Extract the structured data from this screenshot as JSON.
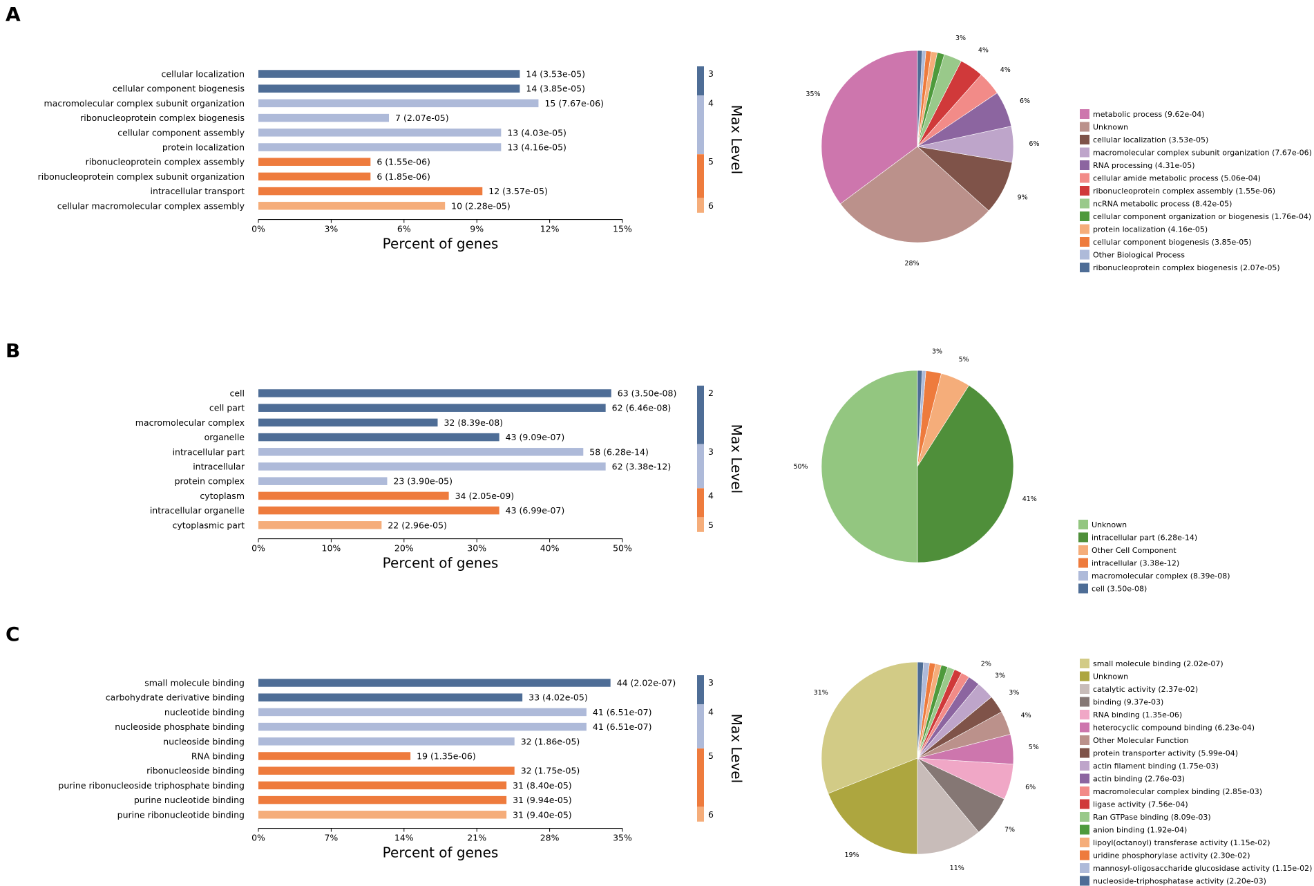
{
  "chart_data": [
    {
      "panel": "A",
      "type": "bar",
      "orientation": "horizontal",
      "xlabel": "Percent of genes",
      "x_ticks": [
        "0%",
        "3%",
        "6%",
        "9%",
        "12%",
        "15%"
      ],
      "xlim": [
        0,
        15
      ],
      "categories": [
        "cellular localization",
        "cellular component biogenesis",
        "macromolecular complex subunit organization",
        "ribonucleoprotein complex biogenesis",
        "cellular component assembly",
        "protein localization",
        "ribonucleoprotein complex assembly",
        "ribonucleoprotein complex subunit organization",
        "intracellular transport",
        "cellular macromolecular complex assembly"
      ],
      "percent_values": [
        10.77,
        10.77,
        11.54,
        5.38,
        10.0,
        10.0,
        4.62,
        4.62,
        9.23,
        7.69
      ],
      "value_labels": [
        "14 (3.53e-05)",
        "14 (3.85e-05)",
        "15 (7.67e-06)",
        "7 (2.07e-05)",
        "13 (4.03e-05)",
        "13 (4.16e-05)",
        "6 (1.55e-06)",
        "6 (1.85e-06)",
        "12 (3.57e-05)",
        "10 (2.28e-05)"
      ],
      "levels": [
        3,
        3,
        4,
        4,
        4,
        4,
        5,
        5,
        5,
        6
      ],
      "level_title": "Max Level",
      "level_colors": {
        "2": "#4e6d96",
        "3": "#4e6d96",
        "4": "#aebad9",
        "5": "#ee7b3d",
        "6": "#f5ad7a"
      },
      "pie": {
        "slices": [
          {
            "label": "metabolic process (9.62e-04)",
            "value": 35,
            "color": "#cd76ad",
            "pct_label": "35%"
          },
          {
            "label": "Unknown",
            "value": 28,
            "color": "#bb918b",
            "pct_label": "28%"
          },
          {
            "label": "cellular localization (3.53e-05)",
            "value": 9,
            "color": "#7f5349",
            "pct_label": "9%"
          },
          {
            "label": "macromolecular complex subunit organization (7.67e-06)",
            "value": 6,
            "color": "#bea5ca",
            "pct_label": "6%"
          },
          {
            "label": "RNA processing (4.31e-05)",
            "value": 6,
            "color": "#8c65a0",
            "pct_label": "6%"
          },
          {
            "label": "cellular amide metabolic process (5.06e-04)",
            "value": 4,
            "color": "#f28b88",
            "pct_label": "4%"
          },
          {
            "label": "ribonucleoprotein complex assembly (1.55e-06)",
            "value": 4,
            "color": "#d0393a",
            "pct_label": "4%"
          },
          {
            "label": "ncRNA metabolic process (8.42e-05)",
            "value": 3,
            "color": "#99c98a",
            "pct_label": "3%"
          },
          {
            "label": "cellular component organization or biogenesis (1.76e-04)",
            "value": 1.2,
            "color": "#4e9a3c",
            "pct_label": ""
          },
          {
            "label": "protein localization (4.16e-05)",
            "value": 1,
            "color": "#f5ad7a",
            "pct_label": ""
          },
          {
            "label": "cellular component biogenesis (3.85e-05)",
            "value": 0.9,
            "color": "#ee7b3d",
            "pct_label": ""
          },
          {
            "label": "Other Biological Process",
            "value": 0.6,
            "color": "#aebad9",
            "pct_label": ""
          },
          {
            "label": "ribonucleoprotein complex biogenesis (2.07e-05)",
            "value": 0.8,
            "color": "#4e6d96",
            "pct_label": ""
          }
        ]
      }
    },
    {
      "panel": "B",
      "type": "bar",
      "orientation": "horizontal",
      "xlabel": "Percent of genes",
      "x_ticks": [
        "0%",
        "10%",
        "20%",
        "30%",
        "40%",
        "50%"
      ],
      "xlim": [
        0,
        50
      ],
      "categories": [
        "cell",
        "cell part",
        "macromolecular complex",
        "organelle",
        "intracellular part",
        "intracellular",
        "protein complex",
        "cytoplasm",
        "intracellular organelle",
        "cytoplasmic part"
      ],
      "percent_values": [
        48.46,
        47.69,
        24.62,
        33.08,
        44.62,
        47.69,
        17.69,
        26.15,
        33.08,
        16.92
      ],
      "value_labels": [
        "63 (3.50e-08)",
        "62 (6.46e-08)",
        "32 (8.39e-08)",
        "43 (9.09e-07)",
        "58 (6.28e-14)",
        "62 (3.38e-12)",
        "23 (3.90e-05)",
        "34 (2.05e-09)",
        "43 (6.99e-07)",
        "22 (2.96e-05)"
      ],
      "levels": [
        2,
        2,
        2,
        2,
        3,
        3,
        3,
        4,
        4,
        5
      ],
      "level_title": "Max Level",
      "level_colors": {
        "2": "#4e6d96",
        "3": "#aebad9",
        "4": "#ee7b3d",
        "5": "#f5ad7a"
      },
      "pie": {
        "slices": [
          {
            "label": "Unknown",
            "value": 50,
            "color": "#93c680",
            "pct_label": "50%"
          },
          {
            "label": "intracellular part (6.28e-14)",
            "value": 41,
            "color": "#4f8f3a",
            "pct_label": "41%"
          },
          {
            "label": "Other Cell Component",
            "value": 5,
            "color": "#f5ad7a",
            "pct_label": "5%"
          },
          {
            "label": "intracellular (3.38e-12)",
            "value": 2.6,
            "color": "#ee7b3d",
            "pct_label": "3%"
          },
          {
            "label": "macromolecular complex (8.39e-08)",
            "value": 0.6,
            "color": "#aebad9",
            "pct_label": ""
          },
          {
            "label": "cell (3.50e-08)",
            "value": 0.8,
            "color": "#4e6d96",
            "pct_label": ""
          }
        ]
      }
    },
    {
      "panel": "C",
      "type": "bar",
      "orientation": "horizontal",
      "xlabel": "Percent of genes",
      "x_ticks": [
        "0%",
        "7%",
        "14%",
        "21%",
        "28%",
        "35%"
      ],
      "xlim": [
        0,
        35
      ],
      "categories": [
        "small molecule binding",
        "carbohydrate derivative binding",
        "nucleotide binding",
        "nucleoside phosphate binding",
        "nucleoside binding",
        "RNA binding",
        "ribonucleoside binding",
        "purine ribonucleoside triphosphate binding",
        "purine nucleotide binding",
        "purine ribonucleotide binding"
      ],
      "percent_values": [
        33.85,
        25.38,
        31.54,
        31.54,
        24.62,
        14.62,
        24.62,
        23.85,
        23.85,
        23.85
      ],
      "value_labels": [
        "44 (2.02e-07)",
        "33 (4.02e-05)",
        "41 (6.51e-07)",
        "41 (6.51e-07)",
        "32 (1.86e-05)",
        "19 (1.35e-06)",
        "32 (1.75e-05)",
        "31 (8.40e-05)",
        "31 (9.94e-05)",
        "31 (9.40e-05)"
      ],
      "levels": [
        3,
        3,
        4,
        4,
        4,
        5,
        5,
        5,
        5,
        6
      ],
      "level_title": "Max Level",
      "level_colors": {
        "3": "#4e6d96",
        "4": "#aebad9",
        "5": "#ee7b3d",
        "6": "#f5ad7a"
      },
      "pie": {
        "slices": [
          {
            "label": "small molecule binding (2.02e-07)",
            "value": 31,
            "color": "#d2cb86",
            "pct_label": "31%"
          },
          {
            "label": "Unknown",
            "value": 19,
            "color": "#ada63f",
            "pct_label": "19%"
          },
          {
            "label": "catalytic activity (2.37e-02)",
            "value": 11,
            "color": "#c8bcb9",
            "pct_label": "11%"
          },
          {
            "label": "binding (9.37e-03)",
            "value": 7,
            "color": "#857774",
            "pct_label": "7%"
          },
          {
            "label": "RNA binding (1.35e-06)",
            "value": 6,
            "color": "#f0a7c6",
            "pct_label": "6%"
          },
          {
            "label": "heterocyclic compound binding (6.23e-04)",
            "value": 5,
            "color": "#cd76ad",
            "pct_label": "5%"
          },
          {
            "label": "Other Molecular Function",
            "value": 4,
            "color": "#bb918b",
            "pct_label": "4%"
          },
          {
            "label": "protein transporter activity (5.99e-04)",
            "value": 3,
            "color": "#7f5349",
            "pct_label": "3%"
          },
          {
            "label": "actin filament binding (1.75e-03)",
            "value": 3,
            "color": "#bea5ca",
            "pct_label": "3%"
          },
          {
            "label": "actin binding (2.76e-03)",
            "value": 2,
            "color": "#8c65a0",
            "pct_label": "2%"
          },
          {
            "label": "macromolecular complex binding (2.85e-03)",
            "value": 1.4,
            "color": "#f28b88",
            "pct_label": ""
          },
          {
            "label": "ligase activity (7.56e-04)",
            "value": 1.3,
            "color": "#d0393a",
            "pct_label": ""
          },
          {
            "label": "Ran GTPase binding (8.09e-03)",
            "value": 1.2,
            "color": "#99c98a",
            "pct_label": ""
          },
          {
            "label": "anion binding (1.92e-04)",
            "value": 1.1,
            "color": "#4e9a3c",
            "pct_label": ""
          },
          {
            "label": "lipoyl(octanoyl) transferase activity (1.15e-02)",
            "value": 1,
            "color": "#f5ad7a",
            "pct_label": ""
          },
          {
            "label": "uridine phosphorylase activity (2.30e-02)",
            "value": 1,
            "color": "#ee7b3d",
            "pct_label": ""
          },
          {
            "label": "mannosyl-oligosaccharide glucosidase activity (1.15e-02)",
            "value": 1,
            "color": "#aebad9",
            "pct_label": ""
          },
          {
            "label": "nucleoside-triphosphatase activity (2.20e-03)",
            "value": 1,
            "color": "#4e6d96",
            "pct_label": ""
          }
        ]
      }
    }
  ]
}
